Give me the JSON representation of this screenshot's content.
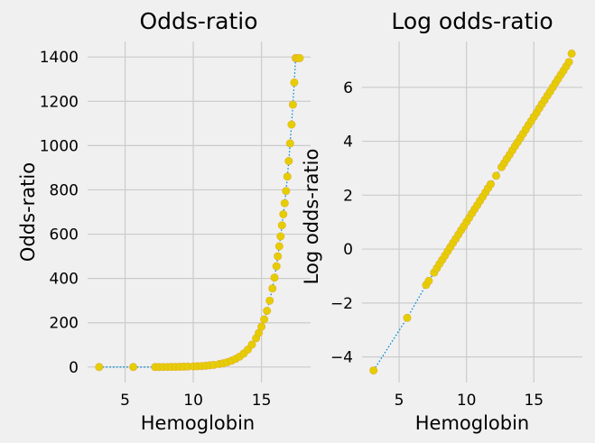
{
  "chart_data": [
    {
      "type": "scatter",
      "title": "Odds-ratio",
      "xlabel": "Hemoglobin",
      "ylabel": "Odds-ratio",
      "xlim": [
        2.25,
        18.6
      ],
      "ylim": [
        -70,
        1470
      ],
      "xticks": [
        5,
        10,
        15
      ],
      "yticks": [
        0,
        200,
        400,
        600,
        800,
        1000,
        1200,
        1400
      ],
      "grid": true,
      "x": [
        3.1,
        5.6,
        7.2,
        7.5,
        7.8,
        8.1,
        8.4,
        8.7,
        9.0,
        9.3,
        9.6,
        10.0,
        10.3,
        10.6,
        10.9,
        11.2,
        11.5,
        11.9,
        12.2,
        12.5,
        12.8,
        13.1,
        13.4,
        13.7,
        14.0,
        14.3,
        14.6,
        14.8,
        15.0,
        15.2,
        15.4,
        15.6,
        15.8,
        15.95,
        16.1,
        16.2,
        16.3,
        16.4,
        16.5,
        16.6,
        16.7,
        16.8,
        16.9,
        17.0,
        17.1,
        17.2,
        17.3,
        17.4,
        17.5,
        17.6,
        17.7,
        17.8
      ],
      "values": [
        0.011,
        0.08,
        0.26,
        0.34,
        0.44,
        0.56,
        0.72,
        0.93,
        1.2,
        1.55,
        2.0,
        2.8,
        3.6,
        4.6,
        5.9,
        7.7,
        9.9,
        13.4,
        17.2,
        22.2,
        28.6,
        36.8,
        47.4,
        61,
        78.6,
        101,
        130,
        154,
        182,
        215,
        254,
        300,
        355,
        404,
        455,
        500,
        545,
        590,
        640,
        690,
        740,
        795,
        860,
        930,
        1010,
        1095,
        1185,
        1285,
        1395,
        1395,
        1395,
        1395
      ]
    },
    {
      "type": "scatter",
      "title": "Log odds-ratio",
      "xlabel": "Hemoglobin",
      "ylabel": "Log odds-ratio",
      "xlim": [
        2.25,
        18.6
      ],
      "ylim": [
        -4.95,
        7.7
      ],
      "xticks": [
        5,
        10,
        15
      ],
      "yticks": [
        -4,
        -2,
        0,
        2,
        4,
        6
      ],
      "grid": true,
      "x": [
        3.1,
        5.6,
        7.0,
        7.2,
        7.6,
        7.8,
        8.0,
        8.2,
        8.4,
        8.6,
        8.8,
        9.0,
        9.2,
        9.4,
        9.6,
        9.8,
        10.0,
        10.2,
        10.4,
        10.6,
        10.8,
        11.0,
        11.2,
        11.4,
        11.6,
        11.8,
        12.2,
        12.6,
        12.8,
        13.0,
        13.2,
        13.4,
        13.6,
        13.8,
        14.0,
        14.2,
        14.4,
        14.6,
        14.8,
        15.0,
        15.2,
        15.4,
        15.6,
        15.8,
        16.0,
        16.2,
        16.4,
        16.6,
        16.8,
        17.0,
        17.2,
        17.4,
        17.6,
        17.8
      ],
      "values": [
        -4.5,
        -2.55,
        -1.33,
        -1.18,
        -0.87,
        -0.71,
        -0.55,
        -0.4,
        -0.24,
        -0.08,
        0.07,
        0.23,
        0.38,
        0.54,
        0.7,
        0.85,
        1.01,
        1.16,
        1.32,
        1.48,
        1.63,
        1.79,
        1.94,
        2.1,
        2.26,
        2.41,
        2.72,
        3.04,
        3.19,
        3.35,
        3.5,
        3.66,
        3.82,
        3.97,
        4.13,
        4.28,
        4.44,
        4.6,
        4.75,
        4.91,
        5.06,
        5.22,
        5.38,
        5.53,
        5.69,
        5.84,
        6.0,
        6.16,
        6.31,
        6.47,
        6.62,
        6.78,
        6.94,
        7.25
      ]
    }
  ]
}
